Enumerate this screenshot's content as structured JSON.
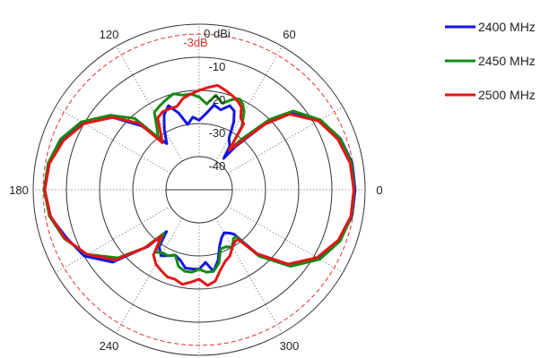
{
  "chart_data": {
    "type": "polar-line",
    "title": "",
    "radial_axis": {
      "min_db": -50,
      "max_db": 0,
      "ring_values": [
        0,
        -10,
        -20,
        -30,
        -40,
        -50
      ],
      "ring_labels": [
        "0 dBi",
        "-10",
        "-20",
        "-30",
        "-40"
      ]
    },
    "reference_circle": {
      "value": -3,
      "label": "-3dB",
      "color": "#e03030"
    },
    "angle_ticks": [
      0,
      60,
      120,
      180,
      240,
      300
    ],
    "angle_tick_labels": [
      "0",
      "60",
      "120",
      "180",
      "240",
      "300"
    ],
    "legend_position": "top-right",
    "series": [
      {
        "name": "2400 MHz",
        "color": "#1515e0",
        "points": [
          [
            0,
            -3
          ],
          [
            10,
            -3.2
          ],
          [
            20,
            -4.7
          ],
          [
            30,
            -8
          ],
          [
            40,
            -14
          ],
          [
            45,
            -22
          ],
          [
            50,
            -33
          ],
          [
            52,
            -38
          ],
          [
            55,
            -34
          ],
          [
            60,
            -32
          ],
          [
            63,
            -27
          ],
          [
            66,
            -24
          ],
          [
            70,
            -23
          ],
          [
            75,
            -25
          ],
          [
            80,
            -24
          ],
          [
            85,
            -27
          ],
          [
            90,
            -29
          ],
          [
            95,
            -28
          ],
          [
            100,
            -30
          ],
          [
            105,
            -26
          ],
          [
            110,
            -23
          ],
          [
            115,
            -25
          ],
          [
            120,
            -29
          ],
          [
            125,
            -33
          ],
          [
            128,
            -30
          ],
          [
            132,
            -24
          ],
          [
            140,
            -16
          ],
          [
            150,
            -9.5
          ],
          [
            160,
            -6
          ],
          [
            170,
            -4
          ],
          [
            180,
            -3.3
          ],
          [
            190,
            -4.3
          ],
          [
            200,
            -7.5
          ],
          [
            210,
            -10
          ],
          [
            220,
            -16
          ],
          [
            228,
            -27
          ],
          [
            232,
            -34
          ],
          [
            235,
            -29
          ],
          [
            240,
            -27
          ],
          [
            245,
            -28
          ],
          [
            250,
            -29
          ],
          [
            255,
            -28
          ],
          [
            260,
            -26
          ],
          [
            265,
            -26
          ],
          [
            270,
            -26
          ],
          [
            275,
            -28
          ],
          [
            280,
            -25
          ],
          [
            285,
            -28
          ],
          [
            290,
            -32
          ],
          [
            295,
            -34
          ],
          [
            300,
            -35
          ],
          [
            305,
            -34
          ],
          [
            308,
            -33
          ],
          [
            312,
            -24
          ],
          [
            320,
            -15
          ],
          [
            330,
            -8.5
          ],
          [
            340,
            -5
          ],
          [
            350,
            -3.3
          ],
          [
            360,
            -3
          ]
        ]
      },
      {
        "name": "2450 MHz",
        "color": "#138a13",
        "points": [
          [
            0,
            -3.3
          ],
          [
            10,
            -3.4
          ],
          [
            20,
            -4.8
          ],
          [
            30,
            -7.8
          ],
          [
            40,
            -13
          ],
          [
            45,
            -20
          ],
          [
            50,
            -30
          ],
          [
            53,
            -35
          ],
          [
            56,
            -27
          ],
          [
            60,
            -23
          ],
          [
            63,
            -21
          ],
          [
            66,
            -20
          ],
          [
            70,
            -21
          ],
          [
            75,
            -23
          ],
          [
            80,
            -21
          ],
          [
            85,
            -24
          ],
          [
            90,
            -22
          ],
          [
            95,
            -21
          ],
          [
            100,
            -21
          ],
          [
            105,
            -20
          ],
          [
            110,
            -21
          ],
          [
            115,
            -22
          ],
          [
            120,
            -23
          ],
          [
            125,
            -28
          ],
          [
            128,
            -30
          ],
          [
            132,
            -21
          ],
          [
            140,
            -15
          ],
          [
            150,
            -9
          ],
          [
            160,
            -5.5
          ],
          [
            170,
            -3.8
          ],
          [
            180,
            -3.3
          ],
          [
            190,
            -4.2
          ],
          [
            200,
            -6.8
          ],
          [
            210,
            -11
          ],
          [
            220,
            -18
          ],
          [
            227,
            -26
          ],
          [
            231,
            -33
          ],
          [
            235,
            -27
          ],
          [
            240,
            -28
          ],
          [
            245,
            -28
          ],
          [
            250,
            -29
          ],
          [
            255,
            -26
          ],
          [
            260,
            -25
          ],
          [
            265,
            -25
          ],
          [
            270,
            -26
          ],
          [
            275,
            -25
          ],
          [
            280,
            -25
          ],
          [
            285,
            -27
          ],
          [
            290,
            -31
          ],
          [
            295,
            -31
          ],
          [
            300,
            -30
          ],
          [
            305,
            -32
          ],
          [
            308,
            -32
          ],
          [
            312,
            -23
          ],
          [
            320,
            -14
          ],
          [
            330,
            -8
          ],
          [
            340,
            -4.8
          ],
          [
            350,
            -3.4
          ],
          [
            360,
            -3.3
          ]
        ]
      },
      {
        "name": "2500 MHz",
        "color": "#e31515",
        "points": [
          [
            0,
            -3.4
          ],
          [
            10,
            -3.8
          ],
          [
            20,
            -5.5
          ],
          [
            30,
            -8.5
          ],
          [
            40,
            -14.5
          ],
          [
            45,
            -22
          ],
          [
            50,
            -32
          ],
          [
            53,
            -35
          ],
          [
            56,
            -26
          ],
          [
            60,
            -25
          ],
          [
            63,
            -22
          ],
          [
            66,
            -21
          ],
          [
            70,
            -20
          ],
          [
            75,
            -19
          ],
          [
            80,
            -18
          ],
          [
            85,
            -19
          ],
          [
            90,
            -20
          ],
          [
            95,
            -21
          ],
          [
            100,
            -22
          ],
          [
            105,
            -24
          ],
          [
            110,
            -24
          ],
          [
            115,
            -24
          ],
          [
            120,
            -25
          ],
          [
            125,
            -30
          ],
          [
            128,
            -32
          ],
          [
            132,
            -23
          ],
          [
            140,
            -16
          ],
          [
            150,
            -10
          ],
          [
            160,
            -6.5
          ],
          [
            170,
            -4.2
          ],
          [
            180,
            -3.5
          ],
          [
            190,
            -4.5
          ],
          [
            200,
            -7
          ],
          [
            210,
            -11
          ],
          [
            220,
            -17
          ],
          [
            227,
            -26
          ],
          [
            231,
            -32
          ],
          [
            235,
            -26
          ],
          [
            240,
            -24
          ],
          [
            245,
            -23
          ],
          [
            250,
            -22
          ],
          [
            255,
            -22
          ],
          [
            260,
            -21
          ],
          [
            265,
            -22
          ],
          [
            270,
            -23
          ],
          [
            275,
            -21
          ],
          [
            280,
            -22
          ],
          [
            285,
            -25
          ],
          [
            290,
            -27
          ],
          [
            295,
            -28
          ],
          [
            300,
            -30
          ],
          [
            305,
            -31
          ],
          [
            308,
            -31
          ],
          [
            312,
            -24
          ],
          [
            320,
            -15
          ],
          [
            330,
            -9
          ],
          [
            340,
            -5.4
          ],
          [
            350,
            -3.6
          ],
          [
            360,
            -3.4
          ]
        ]
      }
    ]
  }
}
